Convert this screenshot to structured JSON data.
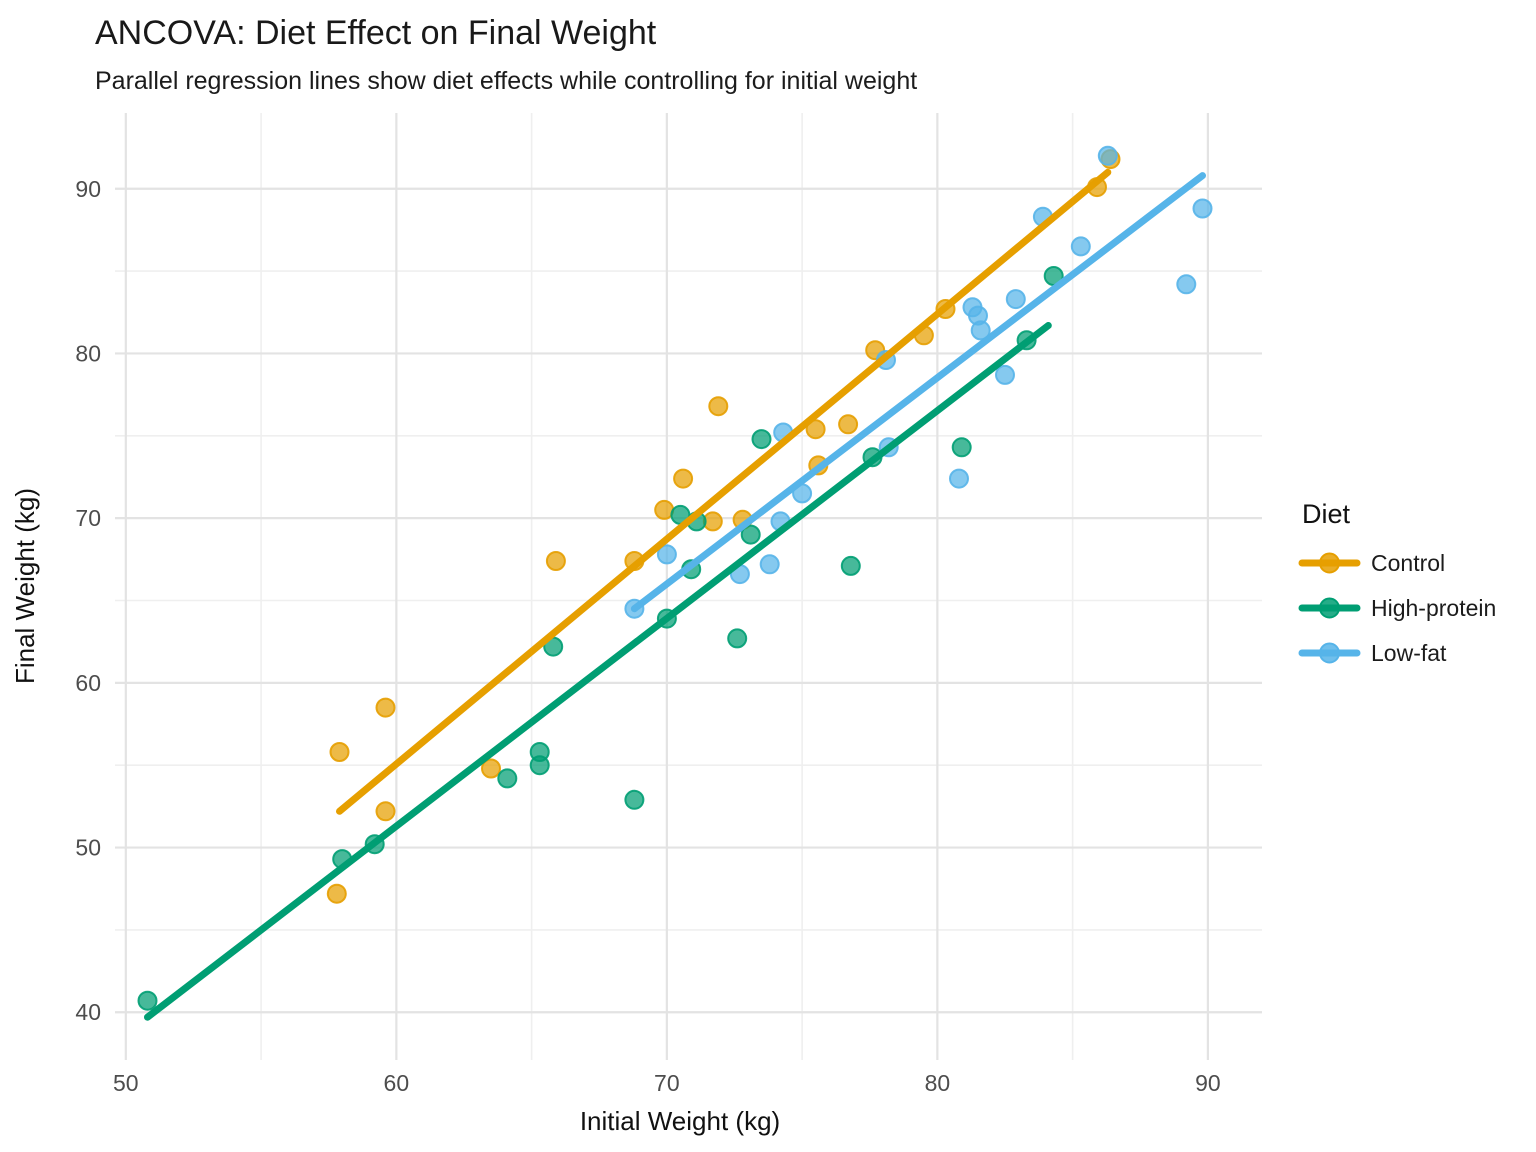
{
  "title": "ANCOVA: Diet Effect on Final Weight",
  "subtitle": "Parallel regression lines show diet effects while controlling for initial weight",
  "legend": {
    "title": "Diet",
    "position": "right"
  },
  "chart_data": {
    "type": "scatter",
    "title": "ANCOVA: Diet Effect on Final Weight",
    "subtitle": "Parallel regression lines show diet effects while controlling for initial weight",
    "xlabel": "Initial Weight (kg)",
    "ylabel": "Final Weight (kg)",
    "xlim": [
      49.6,
      92.0
    ],
    "ylim": [
      37.1,
      94.6
    ],
    "x_ticks": [
      50,
      60,
      70,
      80,
      90
    ],
    "y_ticks": [
      40,
      50,
      60,
      70,
      80,
      90
    ],
    "x_minor_ticks": [
      55,
      65,
      75,
      85
    ],
    "y_minor_ticks": [
      45,
      55,
      65,
      75,
      85
    ],
    "grid": true,
    "legend_title": "Diet",
    "legend_position": "right",
    "series": [
      {
        "name": "Control",
        "color": "#E69F00",
        "points": [
          [
            57.8,
            47.2
          ],
          [
            57.9,
            55.8
          ],
          [
            59.6,
            52.2
          ],
          [
            59.6,
            58.5
          ],
          [
            63.5,
            54.8
          ],
          [
            65.9,
            67.4
          ],
          [
            68.8,
            67.4
          ],
          [
            69.9,
            70.5
          ],
          [
            70.6,
            72.4
          ],
          [
            71.7,
            69.8
          ],
          [
            71.9,
            76.8
          ],
          [
            72.8,
            69.9
          ],
          [
            75.5,
            75.4
          ],
          [
            75.6,
            73.2
          ],
          [
            76.7,
            75.7
          ],
          [
            77.7,
            80.2
          ],
          [
            79.5,
            81.1
          ],
          [
            80.3,
            82.7
          ],
          [
            85.9,
            90.1
          ],
          [
            86.4,
            91.8
          ]
        ],
        "regression_line": {
          "x1": 57.9,
          "y1": 52.2,
          "x2": 86.3,
          "y2": 91.0
        }
      },
      {
        "name": "High-protein",
        "color": "#009E73",
        "points": [
          [
            50.8,
            40.7
          ],
          [
            58.0,
            49.3
          ],
          [
            59.2,
            50.2
          ],
          [
            64.1,
            54.2
          ],
          [
            65.3,
            55.0
          ],
          [
            65.3,
            55.8
          ],
          [
            65.8,
            62.2
          ],
          [
            68.8,
            52.9
          ],
          [
            70.0,
            63.9
          ],
          [
            70.5,
            70.2
          ],
          [
            70.9,
            66.9
          ],
          [
            71.1,
            69.8
          ],
          [
            72.6,
            62.7
          ],
          [
            73.1,
            69.0
          ],
          [
            73.5,
            74.8
          ],
          [
            76.8,
            67.1
          ],
          [
            77.6,
            73.7
          ],
          [
            80.9,
            74.3
          ],
          [
            83.3,
            80.8
          ],
          [
            84.3,
            84.7
          ]
        ],
        "regression_line": {
          "x1": 50.8,
          "y1": 39.7,
          "x2": 84.1,
          "y2": 81.7
        }
      },
      {
        "name": "Low-fat",
        "color": "#56B4E9",
        "points": [
          [
            68.8,
            64.5
          ],
          [
            70.0,
            67.8
          ],
          [
            72.7,
            66.6
          ],
          [
            73.8,
            67.2
          ],
          [
            74.2,
            69.8
          ],
          [
            74.3,
            75.2
          ],
          [
            75.0,
            71.5
          ],
          [
            78.1,
            79.6
          ],
          [
            78.2,
            74.3
          ],
          [
            80.8,
            72.4
          ],
          [
            81.3,
            82.8
          ],
          [
            81.5,
            82.3
          ],
          [
            81.6,
            81.4
          ],
          [
            82.5,
            78.7
          ],
          [
            82.9,
            83.3
          ],
          [
            83.9,
            88.3
          ],
          [
            85.3,
            86.5
          ],
          [
            86.3,
            92.0
          ],
          [
            89.2,
            84.2
          ],
          [
            89.8,
            88.8
          ]
        ],
        "regression_line": {
          "x1": 68.8,
          "y1": 64.5,
          "x2": 89.8,
          "y2": 90.8
        }
      }
    ]
  }
}
